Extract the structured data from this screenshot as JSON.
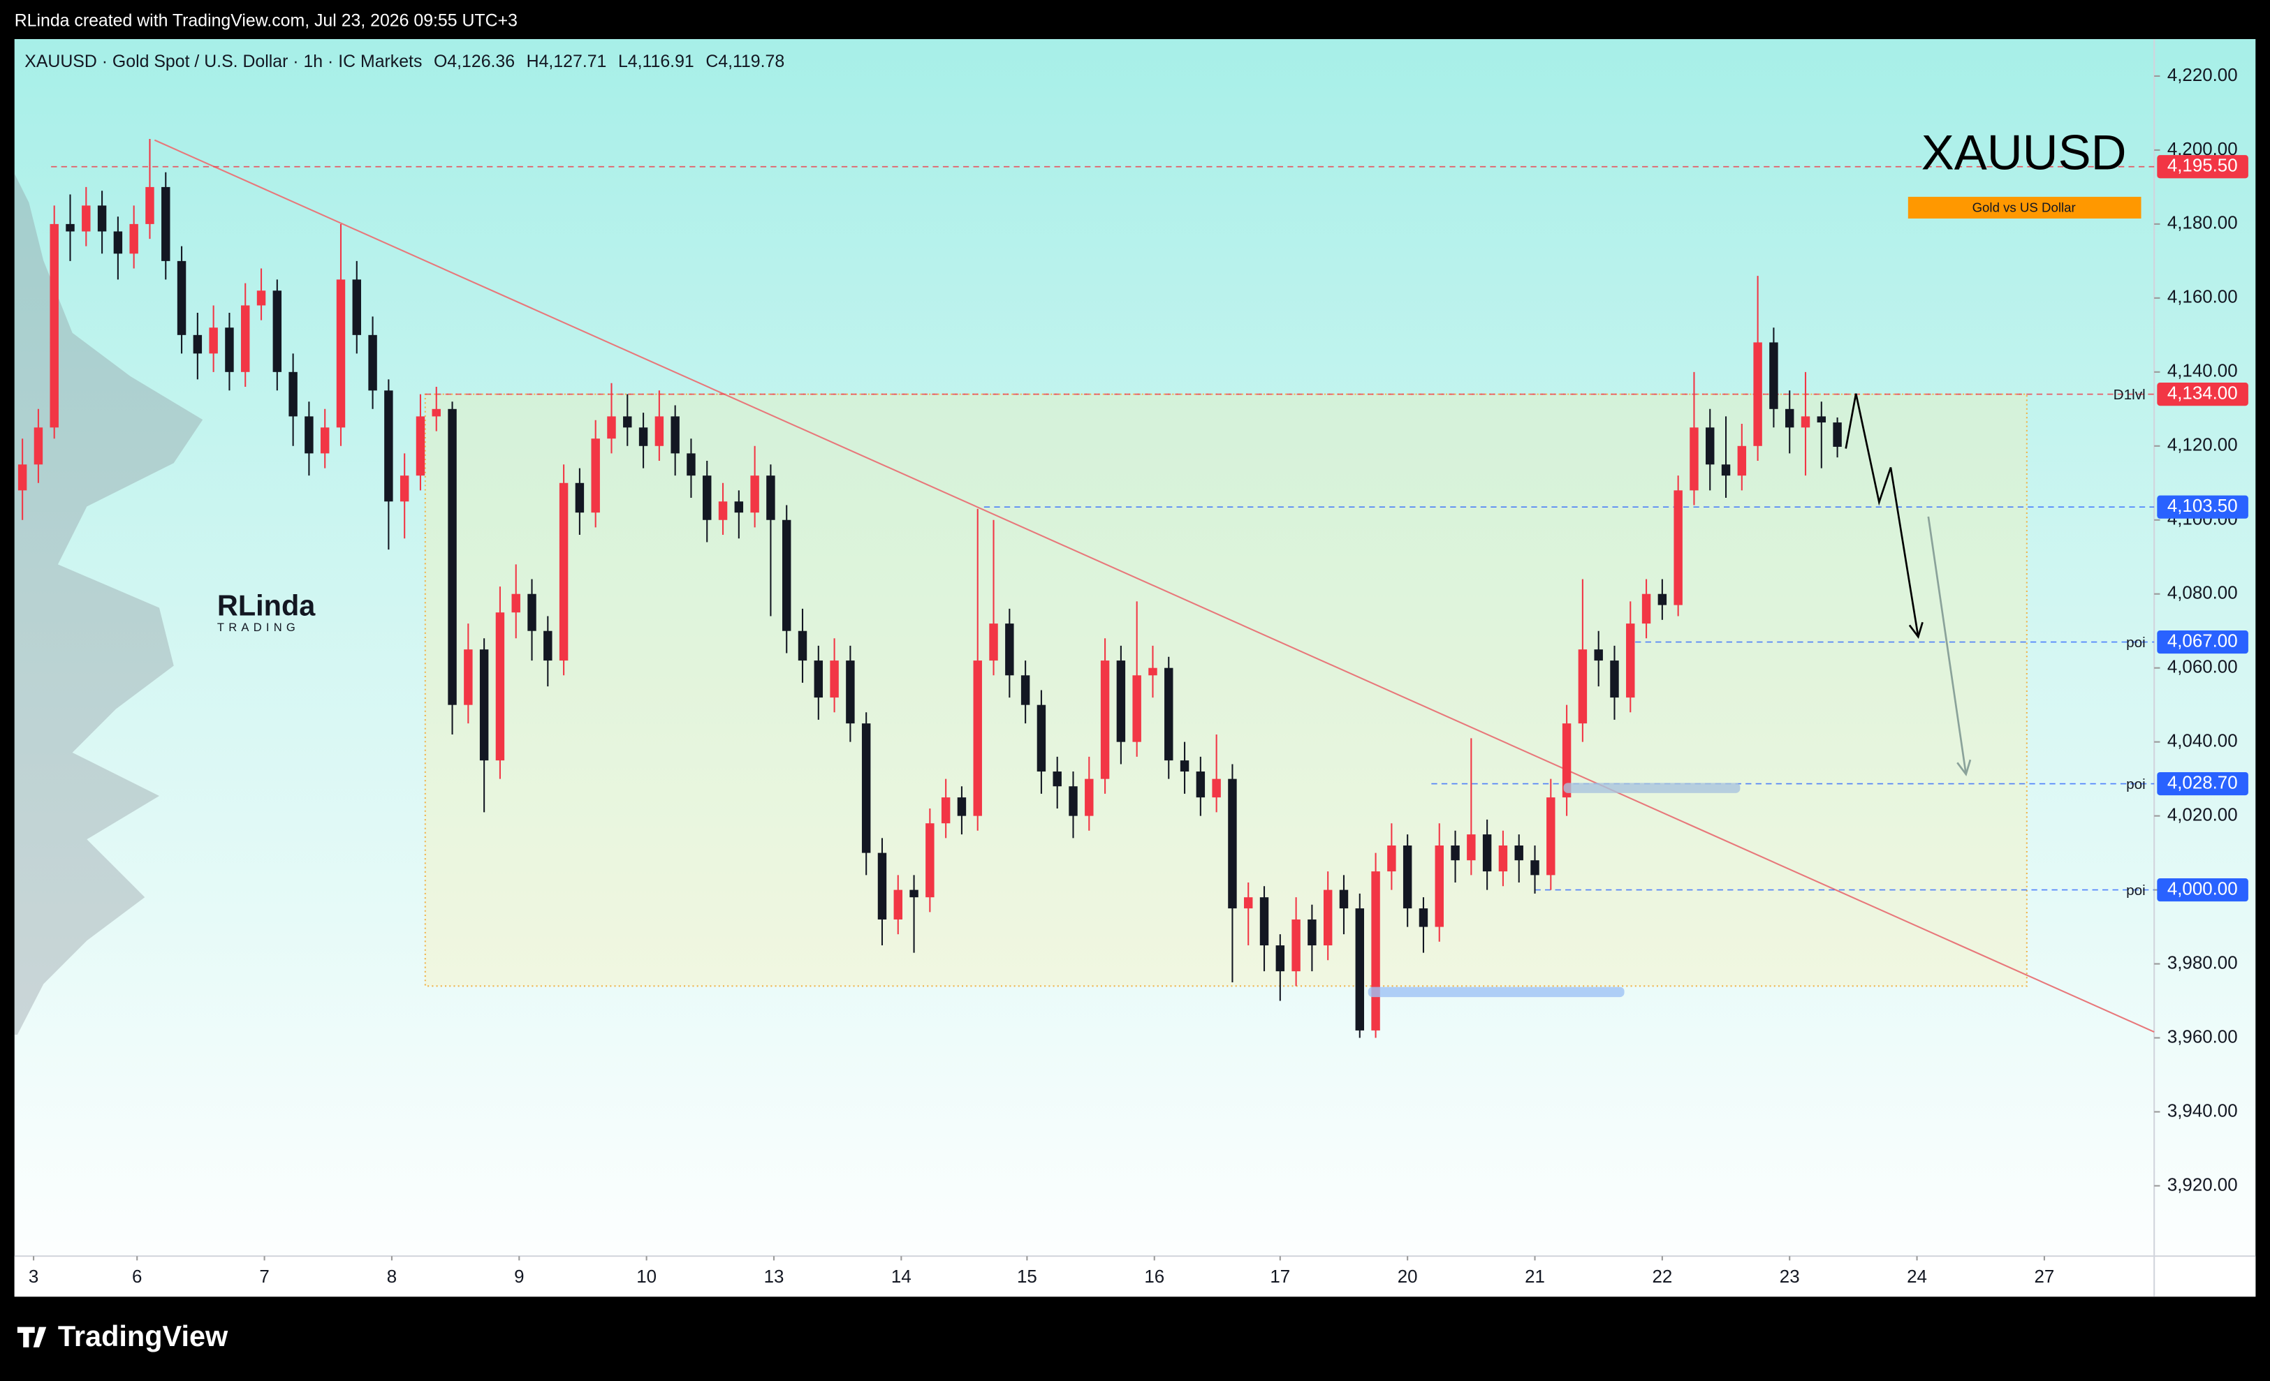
{
  "top_bar": "RLinda created with TradingView.com, Jul 23, 2026 09:55 UTC+3",
  "header": {
    "symbol": "XAUUSD · Gold Spot / U.S. Dollar · 1h · IC Markets",
    "open": "O4,126.36",
    "high": "H4,127.71",
    "low": "L4,116.91",
    "close": "C4,119.78"
  },
  "logo": {
    "name": "RLinda",
    "sub": "TRADING"
  },
  "badge": {
    "title": "XAUUSD",
    "subtitle": "Gold vs US Dollar"
  },
  "footer": "TradingView",
  "chart_data": {
    "type": "candlestick",
    "up_color": "#f23645",
    "down_color": "#131722",
    "xlim": [
      0,
      134.4
    ],
    "ylim": [
      3901,
      4230
    ],
    "xticks": [
      {
        "value": 1.2,
        "label": "3"
      },
      {
        "value": 7.7,
        "label": "6"
      },
      {
        "value": 15.7,
        "label": "7"
      },
      {
        "value": 23.7,
        "label": "8"
      },
      {
        "value": 31.7,
        "label": "9"
      },
      {
        "value": 39.7,
        "label": "10"
      },
      {
        "value": 47.7,
        "label": "13"
      },
      {
        "value": 55.7,
        "label": "14"
      },
      {
        "value": 63.6,
        "label": "15"
      },
      {
        "value": 71.6,
        "label": "16"
      },
      {
        "value": 79.5,
        "label": "17"
      },
      {
        "value": 87.5,
        "label": "20"
      },
      {
        "value": 95.5,
        "label": "21"
      },
      {
        "value": 103.5,
        "label": "22"
      },
      {
        "value": 111.5,
        "label": "23"
      },
      {
        "value": 119.5,
        "label": "24"
      },
      {
        "value": 127.5,
        "label": "27"
      }
    ],
    "yticks": [
      {
        "value": 4220,
        "label": "4,220.00"
      },
      {
        "value": 4200,
        "label": "4,200.00"
      },
      {
        "value": 4180,
        "label": "4,180.00"
      },
      {
        "value": 4160,
        "label": "4,160.00"
      },
      {
        "value": 4140,
        "label": "4,140.00"
      },
      {
        "value": 4120,
        "label": "4,120.00"
      },
      {
        "value": 4100,
        "label": "4,100.00"
      },
      {
        "value": 4080,
        "label": "4,080.00"
      },
      {
        "value": 4060,
        "label": "4,060.00"
      },
      {
        "value": 4040,
        "label": "4,040.00"
      },
      {
        "value": 4020,
        "label": "4,020.00"
      },
      {
        "value": 4000,
        "label": "4,000.00"
      },
      {
        "value": 3980,
        "label": "3,980.00"
      },
      {
        "value": 3960,
        "label": "3,960.00"
      },
      {
        "value": 3940,
        "label": "3,940.00"
      },
      {
        "value": 3920,
        "label": "3,920.00"
      }
    ],
    "candles": [
      [
        4108,
        4122,
        4100,
        4115
      ],
      [
        4115,
        4130,
        4110,
        4125
      ],
      [
        4125,
        4185,
        4122,
        4180
      ],
      [
        4180,
        4188,
        4170,
        4178
      ],
      [
        4178,
        4190,
        4174,
        4185
      ],
      [
        4185,
        4189,
        4172,
        4178
      ],
      [
        4178,
        4182,
        4165,
        4172
      ],
      [
        4172,
        4185,
        4168,
        4180
      ],
      [
        4180,
        4203,
        4176,
        4190
      ],
      [
        4190,
        4194,
        4165,
        4170
      ],
      [
        4170,
        4174,
        4145,
        4150
      ],
      [
        4150,
        4156,
        4138,
        4145
      ],
      [
        4145,
        4158,
        4140,
        4152
      ],
      [
        4152,
        4156,
        4135,
        4140
      ],
      [
        4140,
        4164,
        4136,
        4158
      ],
      [
        4158,
        4168,
        4154,
        4162
      ],
      [
        4162,
        4165,
        4135,
        4140
      ],
      [
        4140,
        4145,
        4120,
        4128
      ],
      [
        4128,
        4132,
        4112,
        4118
      ],
      [
        4118,
        4130,
        4114,
        4125
      ],
      [
        4125,
        4180,
        4120,
        4165
      ],
      [
        4165,
        4170,
        4145,
        4150
      ],
      [
        4150,
        4155,
        4130,
        4135
      ],
      [
        4135,
        4138,
        4092,
        4105
      ],
      [
        4105,
        4118,
        4095,
        4112
      ],
      [
        4112,
        4134,
        4108,
        4128
      ],
      [
        4128,
        4136,
        4124,
        4130
      ],
      [
        4130,
        4132,
        4042,
        4050
      ],
      [
        4050,
        4072,
        4045,
        4065
      ],
      [
        4065,
        4068,
        4021,
        4035
      ],
      [
        4035,
        4082,
        4030,
        4075
      ],
      [
        4075,
        4088,
        4068,
        4080
      ],
      [
        4080,
        4084,
        4062,
        4070
      ],
      [
        4070,
        4074,
        4055,
        4062
      ],
      [
        4062,
        4115,
        4058,
        4110
      ],
      [
        4110,
        4114,
        4096,
        4102
      ],
      [
        4102,
        4127,
        4098,
        4122
      ],
      [
        4122,
        4137,
        4118,
        4128
      ],
      [
        4128,
        4134,
        4120,
        4125
      ],
      [
        4125,
        4129,
        4114,
        4120
      ],
      [
        4120,
        4135,
        4116,
        4128
      ],
      [
        4128,
        4131,
        4112,
        4118
      ],
      [
        4118,
        4122,
        4106,
        4112
      ],
      [
        4112,
        4116,
        4094,
        4100
      ],
      [
        4100,
        4110,
        4096,
        4105
      ],
      [
        4105,
        4108,
        4095,
        4102
      ],
      [
        4102,
        4120,
        4098,
        4112
      ],
      [
        4112,
        4115,
        4074,
        4100
      ],
      [
        4100,
        4104,
        4064,
        4070
      ],
      [
        4070,
        4076,
        4056,
        4062
      ],
      [
        4062,
        4066,
        4046,
        4052
      ],
      [
        4052,
        4068,
        4048,
        4062
      ],
      [
        4062,
        4066,
        4040,
        4045
      ],
      [
        4045,
        4048,
        4004,
        4010
      ],
      [
        4010,
        4014,
        3985,
        3992
      ],
      [
        3992,
        4004,
        3988,
        4000
      ],
      [
        4000,
        4004,
        3983,
        3998
      ],
      [
        3998,
        4022,
        3994,
        4018
      ],
      [
        4018,
        4030,
        4014,
        4025
      ],
      [
        4025,
        4028,
        4015,
        4020
      ],
      [
        4020,
        4103,
        4016,
        4062
      ],
      [
        4062,
        4100,
        4058,
        4072
      ],
      [
        4072,
        4076,
        4052,
        4058
      ],
      [
        4058,
        4062,
        4045,
        4050
      ],
      [
        4050,
        4054,
        4026,
        4032
      ],
      [
        4032,
        4036,
        4022,
        4028
      ],
      [
        4028,
        4032,
        4014,
        4020
      ],
      [
        4020,
        4036,
        4016,
        4030
      ],
      [
        4030,
        4068,
        4026,
        4062
      ],
      [
        4062,
        4066,
        4034,
        4040
      ],
      [
        4040,
        4078,
        4036,
        4058
      ],
      [
        4058,
        4066,
        4052,
        4060
      ],
      [
        4060,
        4063,
        4030,
        4035
      ],
      [
        4035,
        4040,
        4026,
        4032
      ],
      [
        4032,
        4036,
        4020,
        4025
      ],
      [
        4025,
        4042,
        4021,
        4030
      ],
      [
        4030,
        4034,
        3975,
        3995
      ],
      [
        3995,
        4002,
        3985,
        3998
      ],
      [
        3998,
        4001,
        3978,
        3985
      ],
      [
        3985,
        3988,
        3970,
        3978
      ],
      [
        3978,
        3998,
        3974,
        3992
      ],
      [
        3992,
        3996,
        3978,
        3985
      ],
      [
        3985,
        4005,
        3981,
        4000
      ],
      [
        4000,
        4004,
        3988,
        3995
      ],
      [
        3995,
        3999,
        3960,
        3962
      ],
      [
        3962,
        4010,
        3960,
        4005
      ],
      [
        4005,
        4018,
        4000,
        4012
      ],
      [
        4012,
        4015,
        3990,
        3995
      ],
      [
        3995,
        3998,
        3983,
        3990
      ],
      [
        3990,
        4018,
        3986,
        4012
      ],
      [
        4012,
        4016,
        4002,
        4008
      ],
      [
        4008,
        4041,
        4004,
        4015
      ],
      [
        4015,
        4019,
        4000,
        4005
      ],
      [
        4005,
        4016,
        4001,
        4012
      ],
      [
        4012,
        4015,
        4002,
        4008
      ],
      [
        4008,
        4012,
        3999,
        4004
      ],
      [
        4004,
        4030,
        4000,
        4025
      ],
      [
        4025,
        4050,
        4020,
        4045
      ],
      [
        4045,
        4084,
        4040,
        4065
      ],
      [
        4065,
        4070,
        4055,
        4062
      ],
      [
        4062,
        4066,
        4046,
        4052
      ],
      [
        4052,
        4078,
        4048,
        4072
      ],
      [
        4072,
        4084,
        4068,
        4080
      ],
      [
        4080,
        4084,
        4073,
        4077
      ],
      [
        4077,
        4112,
        4074,
        4108
      ],
      [
        4108,
        4140,
        4104,
        4125
      ],
      [
        4125,
        4130,
        4108,
        4115
      ],
      [
        4115,
        4128,
        4106,
        4112
      ],
      [
        4112,
        4126,
        4108,
        4120
      ],
      [
        4120,
        4166,
        4116,
        4148
      ],
      [
        4148,
        4152,
        4125,
        4130
      ],
      [
        4130,
        4135,
        4118,
        4125
      ],
      [
        4125,
        4140,
        4112,
        4128
      ],
      [
        4128,
        4132,
        4114,
        4126.36
      ],
      [
        4126.36,
        4127.71,
        4116.91,
        4119.78
      ]
    ],
    "levels": [
      {
        "value": 4195.5,
        "label": "4,195.50",
        "from": 2.3,
        "color": "#f23645"
      },
      {
        "value": 4134,
        "label": "4,134.00",
        "from": 25.8,
        "color": "#f23645",
        "tag": "D1lvl"
      },
      {
        "value": 4103.5,
        "label": "4,103.50",
        "from": 60.9,
        "color": "#2962ff"
      },
      {
        "value": 4067,
        "label": "4,067.00",
        "from": 101.8,
        "color": "#2962ff",
        "tag": "poi"
      },
      {
        "value": 4028.7,
        "label": "4,028.70",
        "from": 89,
        "color": "#2962ff",
        "tag": "poi"
      },
      {
        "value": 4000,
        "label": "4,000.00",
        "from": 95.5,
        "color": "#2962ff",
        "tag": "poi"
      }
    ],
    "zone": {
      "x": [
        25.8,
        126.4
      ],
      "y": [
        4134,
        3974
      ]
    },
    "trendline": {
      "x": [
        8.8,
        134.4
      ],
      "y": [
        4202.7,
        3961.6
      ]
    }
  }
}
